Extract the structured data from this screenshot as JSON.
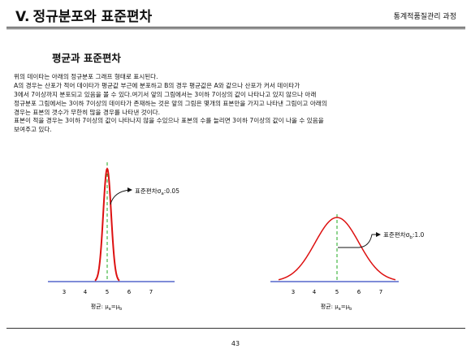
{
  "header": {
    "section_number": "V.",
    "title": "정규분포와 표준편차",
    "course": "통계적품질관리 과정"
  },
  "section_title": "평균과 표준편차",
  "paragraph_lines": [
    "위의 데이타는 아래의 정규분포 그래프 형태로 표시된다.",
    "A의 경우는 산포가 적어 데이타가 평균값 부근에 분포하고 B의 경우 평균값은 A와 같으나 산포가 커서 데이타가",
    "3에서 7이상까지 분포되고 있음을 볼 수 있다.여기서 앞의 그림에서는 3이하 7이상의 값이 나타나고 있지 않으나 아래",
    "정규분포 그림에서는 3이하 7이상의 데이타가 존재하는 것은 앞의 그림은 몇개의 표본만을 가지고 나타낸 그림이고 아래의",
    "경우는 표본의 갯수가 무한히 많을 경우를 나타낸 것이다.",
    "표본이 적을 경우는 3이하 7이상의 값이 나타나지 않을 수있으나 표본의 수를 늘리면 3이하 7이상의 값이 나올 수 있음을",
    "보여주고 있다."
  ],
  "charts": {
    "left": {
      "ticks": [
        "3",
        "4",
        "5",
        "6",
        "7"
      ],
      "mean": 5,
      "sigma": 0.05,
      "annotation_prefix": "표준편차σ",
      "annotation_sub": "a",
      "annotation_suffix": ":0.05",
      "x_caption_prefix": "평균: μ",
      "x_caption_sub1": "a",
      "x_caption_mid": "=μ",
      "x_caption_sub2": "b"
    },
    "right": {
      "ticks": [
        "3",
        "4",
        "5",
        "6",
        "7"
      ],
      "mean": 5,
      "sigma": 1.0,
      "annotation_prefix": "표준편차σ",
      "annotation_sub": "b",
      "annotation_suffix": ":1.0",
      "x_caption_prefix": "평균: μ",
      "x_caption_sub1": "a",
      "x_caption_mid": "=μ",
      "x_caption_sub2": "b"
    },
    "colors": {
      "curve": "#dd1111",
      "mean_line": "#22aa22",
      "axis": "#5566cc"
    }
  },
  "page_number": "43"
}
